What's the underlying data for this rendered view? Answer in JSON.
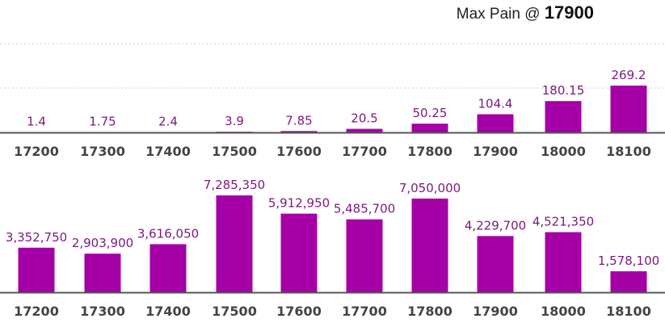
{
  "header": {
    "max_pain_label": "Max Pain @",
    "max_pain_value": "17900"
  },
  "colors": {
    "bar": "#a400a6",
    "value_text": "#7a1a7a",
    "axis": "#555555",
    "grid": "#cfcfcf"
  },
  "chart_data": [
    {
      "type": "bar",
      "categories": [
        "17200",
        "17300",
        "17400",
        "17500",
        "17600",
        "17700",
        "17800",
        "17900",
        "18000",
        "18100"
      ],
      "values": [
        1.4,
        1.75,
        2.4,
        3.9,
        7.85,
        20.5,
        50.25,
        104.4,
        180.15,
        269.2
      ],
      "labels": [
        "1.4",
        "1.75",
        "2.4",
        "3.9",
        "7.85",
        "20.5",
        "50.25",
        "104.4",
        "180.15",
        "269.2"
      ],
      "ylim": [
        0,
        269.2
      ],
      "grid": true,
      "title": "",
      "xlabel": "",
      "ylabel": ""
    },
    {
      "type": "bar",
      "categories": [
        "17200",
        "17300",
        "17400",
        "17500",
        "17600",
        "17700",
        "17800",
        "17900",
        "18000",
        "18100"
      ],
      "values": [
        3352750,
        2903900,
        3616050,
        7285350,
        5912950,
        5485700,
        7050000,
        4229700,
        4521350,
        1578100
      ],
      "labels": [
        "3,352,750",
        "2,903,900",
        "3,616,050",
        "7,285,350",
        "5,912,950",
        "5,485,700",
        "7,050,000",
        "4,229,700",
        "4,521,350",
        "1,578,100"
      ],
      "ylim": [
        0,
        7285350
      ],
      "grid": false,
      "title": "",
      "xlabel": "",
      "ylabel": ""
    }
  ]
}
